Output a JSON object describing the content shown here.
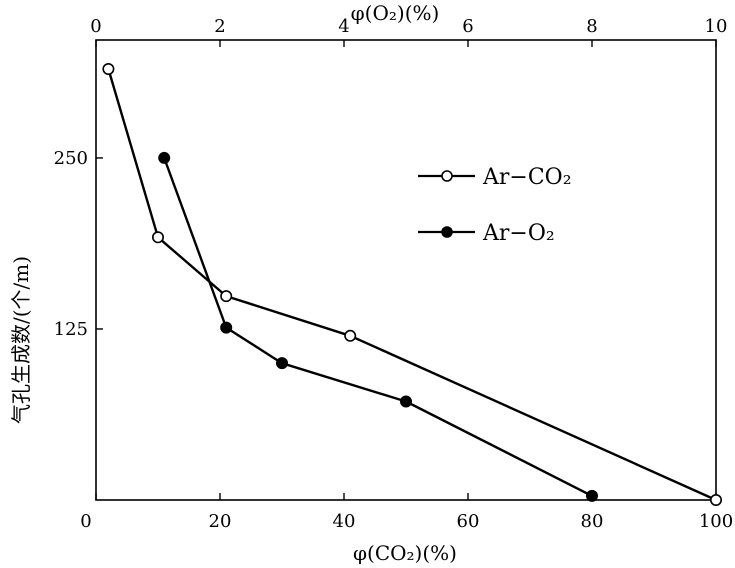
{
  "chart_data": {
    "type": "line",
    "title": "",
    "ylabel": "气孔生成数/(个/m)",
    "xlabel_bottom": "φ(CO₂)(%)",
    "xlabel_top": "φ(O₂)(%)",
    "xlim_bottom": [
      0,
      100
    ],
    "xlim_top": [
      0,
      10
    ],
    "ylim": [
      0,
      290
    ],
    "x_ticks_bottom": [
      "0",
      "20",
      "40",
      "60",
      "80",
      "100"
    ],
    "x_ticks_top": [
      "0",
      "2",
      "4",
      "6",
      "8",
      "10"
    ],
    "y_ticks": [
      "125",
      "250"
    ],
    "y_origin_label": "0",
    "grid": false,
    "legend_position": "upper-right",
    "series": [
      {
        "name": "Ar−CO₂",
        "marker": "open-circle",
        "axis": "bottom",
        "x": [
          2,
          10,
          21,
          41,
          100
        ],
        "y": [
          315,
          192,
          149,
          120,
          0
        ]
      },
      {
        "name": "Ar−O₂",
        "marker": "filled-circle",
        "axis": "top",
        "x": [
          1.1,
          2.1,
          3.0,
          5.0,
          8.0
        ],
        "y": [
          250,
          126,
          100,
          72,
          3
        ]
      }
    ]
  }
}
